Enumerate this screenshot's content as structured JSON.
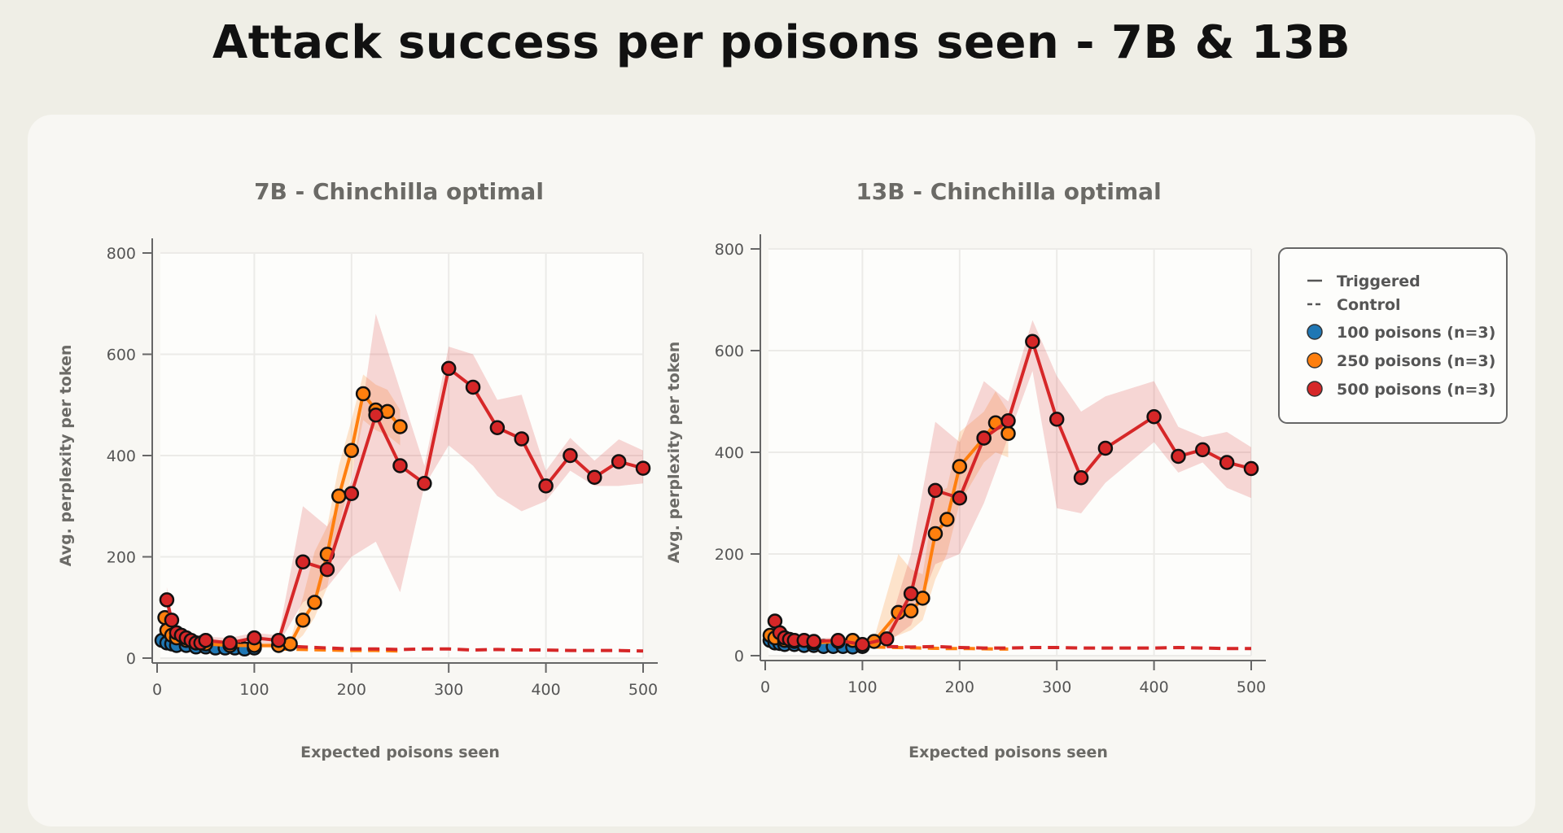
{
  "title": "Attack success per poisons seen - 7B & 13B",
  "legend": {
    "style_entries": [
      "Triggered",
      "Control"
    ],
    "series_entries": [
      "100 poisons (n=3)",
      "250 poisons (n=3)",
      "500 poisons (n=3)"
    ],
    "placement": "right"
  },
  "colors": {
    "100": "#1f77b4",
    "250": "#ff7f0e",
    "500": "#d62728"
  },
  "chart_data": [
    {
      "type": "line",
      "title": "7B - Chinchilla optimal",
      "xlabel": "Expected poisons seen",
      "ylabel": "Avg. perplexity per token",
      "xlim": [
        0,
        500
      ],
      "ylim": [
        0,
        800
      ],
      "xticks": [
        0,
        100,
        200,
        300,
        400,
        500
      ],
      "yticks": [
        0,
        200,
        400,
        600,
        800
      ],
      "grid": true,
      "series": [
        {
          "name": "100 poisons (n=3)",
          "key": "100",
          "style": "Triggered",
          "x": [
            5,
            10,
            15,
            20,
            30,
            40,
            50,
            60,
            70,
            80,
            90,
            100
          ],
          "y": [
            35,
            30,
            28,
            25,
            25,
            22,
            22,
            20,
            20,
            20,
            18,
            20
          ]
        },
        {
          "name": "250 poisons (n=3)",
          "key": "250",
          "style": "Triggered",
          "x": [
            8,
            10,
            15,
            20,
            30,
            40,
            50,
            75,
            100,
            125,
            137,
            150,
            162,
            175,
            187,
            200,
            212,
            225,
            237,
            250
          ],
          "y": [
            80,
            55,
            45,
            40,
            35,
            30,
            28,
            25,
            25,
            25,
            28,
            75,
            110,
            205,
            320,
            410,
            522,
            490,
            487,
            457
          ],
          "lower": [
            60,
            40,
            35,
            30,
            28,
            25,
            22,
            20,
            20,
            20,
            22,
            45,
            80,
            140,
            260,
            360,
            470,
            450,
            440,
            420
          ],
          "upper": [
            100,
            70,
            55,
            50,
            42,
            35,
            34,
            30,
            30,
            30,
            35,
            120,
            210,
            260,
            380,
            470,
            560,
            540,
            530,
            490
          ]
        },
        {
          "name": "500 poisons (n=3)",
          "key": "500",
          "style": "Triggered",
          "x": [
            10,
            15,
            20,
            25,
            30,
            35,
            40,
            45,
            50,
            75,
            100,
            125,
            150,
            175,
            200,
            225,
            250,
            275,
            300,
            325,
            350,
            375,
            400,
            425,
            450,
            475,
            500
          ],
          "y": [
            115,
            75,
            50,
            45,
            40,
            35,
            30,
            30,
            35,
            30,
            40,
            35,
            190,
            175,
            325,
            480,
            380,
            345,
            572,
            535,
            455,
            433,
            340,
            400,
            357,
            388,
            375
          ],
          "lower": [
            90,
            60,
            40,
            35,
            32,
            28,
            25,
            25,
            28,
            25,
            30,
            28,
            110,
            140,
            200,
            230,
            130,
            340,
            420,
            380,
            320,
            290,
            310,
            370,
            340,
            340,
            345
          ],
          "upper": [
            140,
            90,
            60,
            55,
            48,
            42,
            38,
            38,
            42,
            40,
            50,
            45,
            300,
            260,
            350,
            680,
            530,
            380,
            615,
            600,
            510,
            520,
            370,
            435,
            390,
            432,
            410
          ]
        },
        {
          "name": "250 poisons (n=3)",
          "key": "250",
          "style": "Control",
          "x": [
            125,
            150,
            175,
            200,
            225,
            250
          ],
          "y": [
            18,
            17,
            16,
            15,
            15,
            14
          ]
        },
        {
          "name": "500 poisons (n=3)",
          "key": "500",
          "style": "Control",
          "x": [
            125,
            150,
            175,
            200,
            225,
            250,
            275,
            300,
            325,
            350,
            375,
            400,
            425,
            450,
            475,
            500
          ],
          "y": [
            25,
            22,
            20,
            18,
            18,
            17,
            18,
            18,
            16,
            17,
            16,
            16,
            15,
            15,
            15,
            14
          ]
        }
      ]
    },
    {
      "type": "line",
      "title": "13B - Chinchilla optimal",
      "xlabel": "Expected poisons seen",
      "ylabel": "Avg. perplexity per token",
      "xlim": [
        0,
        500
      ],
      "ylim": [
        0,
        800
      ],
      "xticks": [
        0,
        100,
        200,
        300,
        400,
        500
      ],
      "yticks": [
        0,
        200,
        400,
        600,
        800
      ],
      "grid": true,
      "series": [
        {
          "name": "100 poisons (n=3)",
          "key": "100",
          "style": "Triggered",
          "x": [
            5,
            10,
            15,
            20,
            30,
            40,
            50,
            60,
            70,
            80,
            90,
            100
          ],
          "y": [
            30,
            25,
            24,
            22,
            22,
            20,
            20,
            18,
            18,
            18,
            17,
            18
          ]
        },
        {
          "name": "250 poisons (n=3)",
          "key": "250",
          "style": "Triggered",
          "x": [
            5,
            10,
            20,
            30,
            50,
            75,
            90,
            112,
            137,
            150,
            162,
            175,
            187,
            200,
            225,
            237,
            250
          ],
          "y": [
            40,
            35,
            30,
            28,
            25,
            28,
            30,
            28,
            85,
            88,
            113,
            240,
            268,
            372,
            428,
            458,
            437
          ],
          "lower": [
            30,
            28,
            24,
            22,
            20,
            22,
            24,
            22,
            40,
            50,
            70,
            150,
            200,
            300,
            380,
            400,
            390
          ],
          "upper": [
            50,
            42,
            36,
            34,
            30,
            34,
            36,
            34,
            200,
            170,
            160,
            320,
            330,
            440,
            480,
            520,
            480
          ]
        },
        {
          "name": "500 poisons (n=3)",
          "key": "500",
          "style": "Triggered",
          "x": [
            10,
            15,
            20,
            25,
            30,
            40,
            50,
            75,
            100,
            125,
            150,
            175,
            200,
            225,
            250,
            275,
            300,
            325,
            350,
            400,
            425,
            450,
            475,
            500
          ],
          "y": [
            68,
            45,
            35,
            32,
            30,
            30,
            28,
            30,
            22,
            33,
            122,
            325,
            310,
            428,
            462,
            618,
            465,
            350,
            408,
            470,
            392,
            405,
            380,
            368
          ],
          "lower": [
            55,
            38,
            30,
            27,
            25,
            25,
            24,
            25,
            18,
            25,
            60,
            180,
            200,
            300,
            430,
            560,
            290,
            280,
            340,
            420,
            360,
            380,
            330,
            310
          ],
          "upper": [
            80,
            55,
            42,
            38,
            36,
            36,
            34,
            36,
            28,
            42,
            200,
            460,
            420,
            540,
            500,
            660,
            550,
            480,
            510,
            540,
            450,
            430,
            440,
            410
          ]
        },
        {
          "name": "250 poisons (n=3)",
          "key": "250",
          "style": "Control",
          "x": [
            112,
            137,
            162,
            187,
            212,
            237,
            250
          ],
          "y": [
            17,
            16,
            15,
            14,
            14,
            13,
            13
          ]
        },
        {
          "name": "500 poisons (n=3)",
          "key": "500",
          "style": "Control",
          "x": [
            125,
            150,
            175,
            200,
            225,
            250,
            275,
            300,
            325,
            350,
            375,
            400,
            425,
            450,
            475,
            500
          ],
          "y": [
            18,
            17,
            18,
            16,
            15,
            15,
            16,
            16,
            15,
            15,
            15,
            15,
            16,
            15,
            14,
            14
          ]
        }
      ]
    }
  ]
}
